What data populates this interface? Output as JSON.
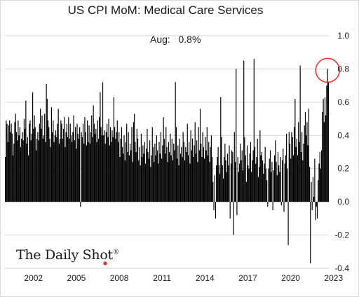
{
  "chart_data": {
    "type": "bar",
    "title": "US CPI MoM: Medical Care Services",
    "annotation": {
      "label": "Aug:",
      "value": "0.8%"
    },
    "ylim": [
      -0.4,
      1.0
    ],
    "y_ticks": [
      "1.0",
      "0.8",
      "0.6",
      "0.4",
      "0.2",
      "0.0",
      "-0.2",
      "-0.4"
    ],
    "x_ticks": [
      "2002",
      "2005",
      "2008",
      "2011",
      "2014",
      "2017",
      "2020",
      "2023"
    ],
    "x_start_year": 2000,
    "x_end_year": 2022.667,
    "grid": "horizontal",
    "bar_color": "#000000",
    "highlight": {
      "year": 2022.58,
      "value": 0.8,
      "color": "#e0312b"
    },
    "values": [
      0.27,
      0.49,
      0.47,
      0.36,
      0.46,
      0.49,
      0.42,
      0.47,
      0.41,
      0.28,
      0.35,
      0.48,
      0.53,
      0.42,
      0.37,
      0.49,
      0.4,
      0.45,
      0.33,
      0.38,
      0.42,
      0.37,
      0.5,
      0.44,
      0.61,
      0.35,
      0.39,
      0.28,
      0.47,
      0.49,
      0.37,
      0.41,
      0.66,
      0.44,
      0.52,
      0.45,
      0.31,
      0.38,
      0.42,
      0.37,
      0.47,
      0.56,
      0.44,
      0.52,
      0.38,
      0.4,
      0.53,
      0.36,
      0.71,
      0.62,
      0.49,
      0.45,
      0.38,
      0.33,
      0.57,
      0.42,
      0.49,
      0.36,
      0.4,
      0.43,
      0.39,
      0.47,
      0.56,
      0.35,
      0.38,
      0.49,
      0.47,
      0.38,
      0.44,
      0.51,
      0.33,
      0.42,
      0.47,
      0.39,
      0.51,
      0.38,
      0.47,
      0.4,
      0.36,
      0.42,
      0.52,
      0.37,
      0.45,
      0.32,
      0.47,
      0.41,
      0.38,
      0.45,
      -0.03,
      0.42,
      0.39,
      0.47,
      0.35,
      0.51,
      0.42,
      0.34,
      0.49,
      0.36,
      0.46,
      0.35,
      0.42,
      0.52,
      0.39,
      0.58,
      0.47,
      0.41,
      0.44,
      0.36,
      0.49,
      0.38,
      0.51,
      0.66,
      0.45,
      0.4,
      0.72,
      0.4,
      0.43,
      0.35,
      0.42,
      0.47,
      0.39,
      0.5,
      0.34,
      0.45,
      0.36,
      0.43,
      0.39,
      0.63,
      0.45,
      0.38,
      0.42,
      0.49,
      0.36,
      0.42,
      0.27,
      0.38,
      0.45,
      0.33,
      0.29,
      0.4,
      0.25,
      0.36,
      0.47,
      0.3,
      0.42,
      0.28,
      0.35,
      0.31,
      0.45,
      0.24,
      0.48,
      0.53,
      0.36,
      0.3,
      0.44,
      0.38,
      0.25,
      0.33,
      0.22,
      0.41,
      0.27,
      0.34,
      0.29,
      0.36,
      0.23,
      0.32,
      0.44,
      0.3,
      0.26,
      0.37,
      0.21,
      0.28,
      0.45,
      0.33,
      0.24,
      0.35,
      0.28,
      0.4,
      0.31,
      0.23,
      0.36,
      0.29,
      0.42,
      0.26,
      0.34,
      0.51,
      0.38,
      0.29,
      0.45,
      0.33,
      0.24,
      0.36,
      0.3,
      0.41,
      0.28,
      0.38,
      0.25,
      0.35,
      0.31,
      0.72,
      0.45,
      0.26,
      0.34,
      0.22,
      0.38,
      0.29,
      0.33,
      0.27,
      0.42,
      0.36,
      0.25,
      0.33,
      0.3,
      0.47,
      0.28,
      0.36,
      0.23,
      0.43,
      0.31,
      0.38,
      0.27,
      0.34,
      0.48,
      0.29,
      0.37,
      0.24,
      0.45,
      0.31,
      0.56,
      0.35,
      0.27,
      0.42,
      0.33,
      0.26,
      0.39,
      0.31,
      0.45,
      0.28,
      0.36,
      0.24,
      0.33,
      0.4,
      0.27,
      0.12,
      -0.05,
      0.16,
      -0.1,
      0.22,
      0.27,
      0.33,
      0.22,
      0.17,
      0.63,
      0.39,
      0.22,
      0.14,
      0.27,
      0.35,
      0.25,
      0.18,
      0.29,
      0.22,
      0.34,
      -0.1,
      0.23,
      0.31,
      0.3,
      -0.2,
      0.42,
      0.24,
      0.8,
      -0.08,
      0.27,
      0.18,
      0.23,
      0.35,
      0.25,
      0.31,
      0.19,
      0.85,
      0.39,
      0.28,
      0.12,
      0.34,
      0.22,
      0.2,
      0.29,
      0.36,
      0.18,
      0.25,
      0.31,
      0.86,
      0.33,
      0.23,
      0.27,
      0.38,
      0.15,
      0.21,
      0.43,
      0.28,
      0.3,
      0.25,
      0.17,
      0.23,
      0.33,
      0.2,
      0.13,
      -0.03,
      0.2,
      0.26,
      0.31,
      0.18,
      0.24,
      -0.05,
      0.19,
      0.28,
      0.37,
      0.24,
      0.16,
      0.3,
      0.22,
      0.18,
      0.27,
      -0.02,
      0.25,
      0.32,
      -0.06,
      0.23,
      0.28,
      0.41,
      0.2,
      -0.26,
      0.42,
      0.35,
      0.26,
      0.42,
      0.39,
      0.28,
      0.45,
      0.62,
      0.33,
      0.38,
      0.28,
      0.48,
      0.36,
      0.82,
      0.3,
      0.42,
      0.25,
      0.35,
      0.46,
      0.54,
      0.4,
      0.48,
      0.34,
      0.56,
      0.21,
      -0.37,
      0.12,
      -0.05,
      0.15,
      0.03,
      0.26,
      -0.11,
      -0.03,
      -0.1,
      0.13,
      0.23,
      0.3,
      0.2,
      0.31,
      0.54,
      0.62,
      0.48,
      0.63,
      0.52,
      0.7,
      0.8,
      0.72
    ]
  },
  "watermark": {
    "text": "The Daily Shot",
    "mark": "®"
  }
}
